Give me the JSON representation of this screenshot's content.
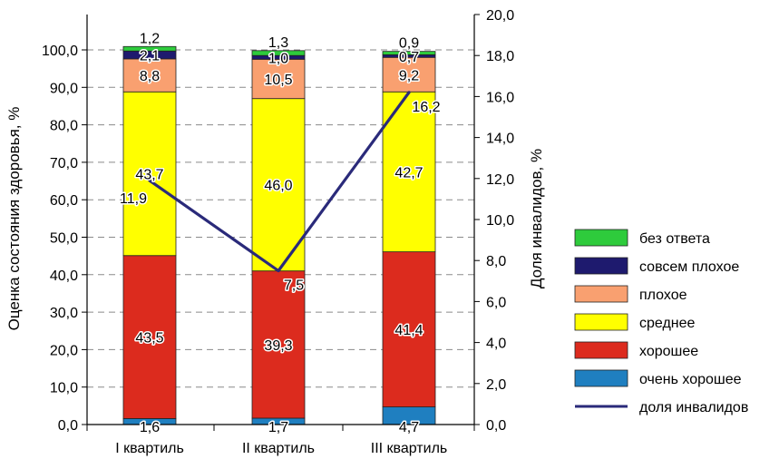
{
  "chart_data": {
    "type": "bar",
    "stacked": true,
    "categories": [
      "I квартиль",
      "II квартиль",
      "III квартиль"
    ],
    "series": [
      {
        "name": "очень хорошее",
        "values": [
          1.6,
          1.7,
          4.7
        ],
        "labels": [
          "1,6",
          "1,7",
          "4,7"
        ],
        "color": "#1f7fc0"
      },
      {
        "name": "хорошее",
        "values": [
          43.5,
          39.3,
          41.4
        ],
        "labels": [
          "43,5",
          "39,3",
          "41,4"
        ],
        "color": "#dc2b1e"
      },
      {
        "name": "среднее",
        "values": [
          43.7,
          46.0,
          42.7
        ],
        "labels": [
          "43,7",
          "46,0",
          "42,7"
        ],
        "color": "#ffff00"
      },
      {
        "name": "плохое",
        "values": [
          8.8,
          10.5,
          9.2
        ],
        "labels": [
          "8,8",
          "10,5",
          "9,2"
        ],
        "color": "#f9a070"
      },
      {
        "name": "совсем плохое",
        "values": [
          2.1,
          1.0,
          0.7
        ],
        "labels": [
          "2,1",
          "1,0",
          "0,7"
        ],
        "color": "#1e1a6e"
      },
      {
        "name": "без ответа",
        "values": [
          1.2,
          1.3,
          0.9
        ],
        "labels": [
          "1,2",
          "1,3",
          "0,9"
        ],
        "color": "#2ecb3c"
      }
    ],
    "line": {
      "name": "доля инвалидов",
      "values": [
        11.9,
        7.5,
        16.2
      ],
      "labels": [
        "11,9",
        "7,5",
        "16,2"
      ],
      "color": "#2a2a7a",
      "axis": "right"
    },
    "ylabel": "Оценка состояния здоровья, %",
    "ylabel_right": "Доля инвалидов, %",
    "ylim": [
      0,
      100
    ],
    "ylim_right": [
      0,
      20
    ],
    "yticks": [
      "0,0",
      "10,0",
      "20,0",
      "30,0",
      "40,0",
      "50,0",
      "60,0",
      "70,0",
      "80,0",
      "90,0",
      "100,0"
    ],
    "yticks_right": [
      "0,0",
      "2,0",
      "4,0",
      "6,0",
      "8,0",
      "10,0",
      "12,0",
      "14,0",
      "16,0",
      "18,0",
      "20,0"
    ],
    "grid": "dashed horizontal",
    "legend_position": "right"
  }
}
